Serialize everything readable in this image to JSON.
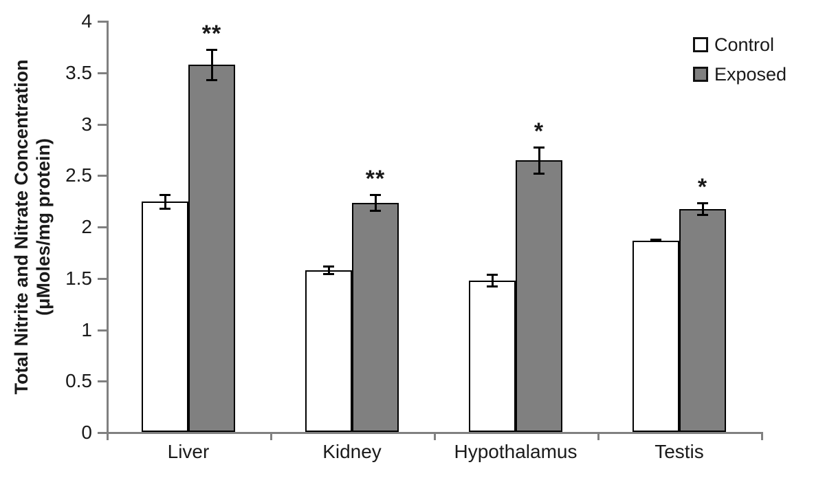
{
  "chart_data": {
    "type": "bar",
    "categories": [
      "Liver",
      "Kidney",
      "Hypothalamus",
      "Testis"
    ],
    "series": [
      {
        "name": "Control",
        "fill": "#ffffff",
        "values": [
          2.24,
          1.57,
          1.47,
          1.86
        ],
        "errors": [
          0.07,
          0.04,
          0.06,
          0.01
        ],
        "significance": [
          "",
          "",
          "",
          ""
        ]
      },
      {
        "name": "Exposed",
        "fill": "#808080",
        "values": [
          3.57,
          2.23,
          2.64,
          2.17
        ],
        "errors": [
          0.15,
          0.08,
          0.13,
          0.06
        ],
        "significance": [
          "**",
          "**",
          "*",
          "*"
        ]
      }
    ],
    "ylabel_line1": "Total Nitrite and Nitrate Concentration",
    "ylabel_line2": "(μMoles/mg protein)",
    "ylim": [
      0,
      4
    ],
    "ytick_step": 0.5,
    "ytick_labels": [
      "0",
      "0.5",
      "1",
      "1.5",
      "2",
      "2.5",
      "3",
      "3.5",
      "4"
    ],
    "legend": {
      "position": "top-right",
      "items": [
        {
          "label": "Control",
          "fill": "#ffffff"
        },
        {
          "label": "Exposed",
          "fill": "#808080"
        }
      ]
    },
    "grid": false,
    "colors": {
      "axis": "#808080",
      "bar_border": "#000000",
      "error_bar": "#000000",
      "text": "#1a1a1a"
    }
  }
}
